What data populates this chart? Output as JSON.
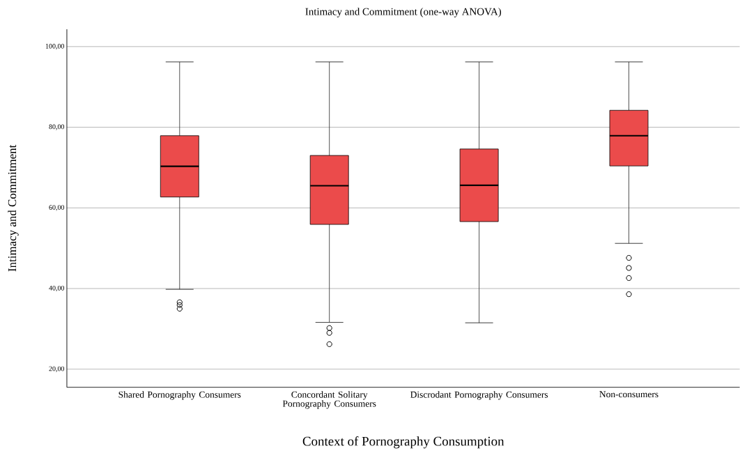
{
  "chart_data": {
    "type": "box",
    "title": "Intimacy and Commitment (one-way ANOVA)",
    "xlabel": "Context of Pornography Consumption",
    "ylabel": "Intimacy and Commitment",
    "categories": [
      "Shared Pornography Consumers",
      "Concordant Solitary Pornography Consumers",
      "Discrodant Pornography Consumers",
      "Non-consumers"
    ],
    "color": "#eb4b4b",
    "boxes": [
      {
        "low": 39.8,
        "q1": 62.7,
        "median": 70.3,
        "q3": 77.9,
        "high": 96.2,
        "outliers": [
          36.6,
          35.9,
          35.0
        ]
      },
      {
        "low": 31.6,
        "q1": 55.9,
        "median": 65.5,
        "q3": 73.0,
        "high": 96.2,
        "outliers": [
          30.2,
          29.0,
          26.2
        ]
      },
      {
        "low": 31.5,
        "q1": 56.6,
        "median": 65.6,
        "q3": 74.6,
        "high": 96.2
      },
      {
        "low": 51.2,
        "q1": 70.4,
        "median": 77.9,
        "q3": 84.2,
        "high": 96.2,
        "outliers": [
          47.6,
          45.1,
          42.6,
          38.6
        ]
      }
    ],
    "ylim": [
      15.5,
      104.3
    ],
    "yticks": [
      {
        "value": 20,
        "label": "20,00"
      },
      {
        "value": 40,
        "label": "40,00"
      },
      {
        "value": 60,
        "label": "60,00"
      },
      {
        "value": 80,
        "label": "80,00"
      },
      {
        "value": 100,
        "label": "100,00"
      }
    ],
    "grid": "y"
  }
}
